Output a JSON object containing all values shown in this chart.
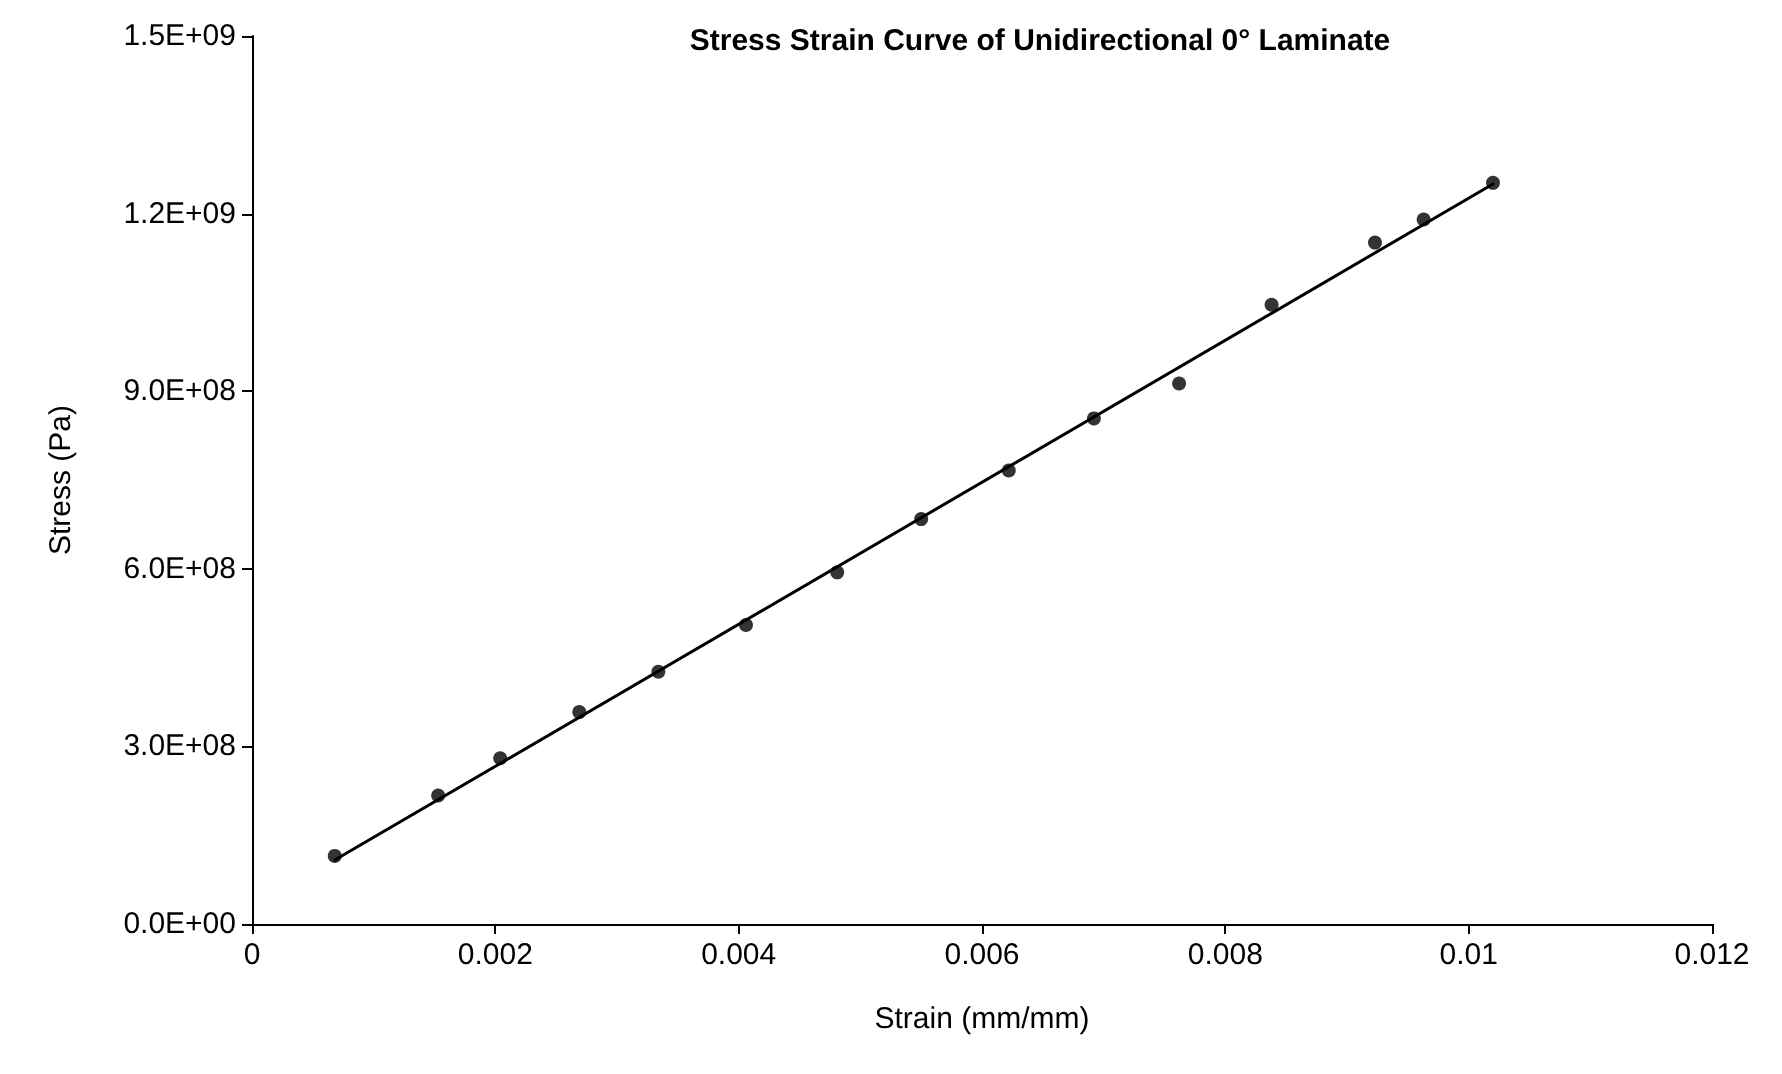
{
  "chart_data": {
    "type": "scatter",
    "title": "Stress Strain Curve of Unidirectional 0° Laminate",
    "xlabel": "Strain (mm/mm)",
    "ylabel": "Stress (Pa)",
    "xlim": [
      0,
      0.012
    ],
    "xticks": [
      0,
      0.002,
      0.004,
      0.006,
      0.008,
      0.01,
      0.012
    ],
    "ylim": [
      0,
      1500000000
    ],
    "yticks": [
      {
        "value": 0,
        "label": "0.0E+00"
      },
      {
        "value": 300000000,
        "label": "3.0E+08"
      },
      {
        "value": 600000000,
        "label": "6.0E+08"
      },
      {
        "value": 900000000,
        "label": "9.0E+08"
      },
      {
        "value": 1200000000,
        "label": "1.2E+09"
      },
      {
        "value": 1500000000,
        "label": "1.5E+09"
      }
    ],
    "grid": false,
    "series": [
      {
        "color": "#000000",
        "marker": "circle",
        "x": [
          0.00068,
          0.00153,
          0.00204,
          0.00269,
          0.00334,
          0.00406,
          0.00481,
          0.0055,
          0.00622,
          0.00692,
          0.00762,
          0.00838,
          0.00923,
          0.00963,
          0.0102
        ],
        "values": [
          115000000,
          217000000,
          280000000,
          358000000,
          426000000,
          505000000,
          594000000,
          684000000,
          766000000,
          854000000,
          913000000,
          1046000000,
          1151000000,
          1190000000,
          1252000000
        ]
      },
      {
        "type": "line",
        "color": "#000000",
        "marker": "none",
        "line_style": "solid",
        "x": [
          0.00068,
          0.0102
        ],
        "values": [
          108000000,
          1250000000
        ]
      }
    ]
  }
}
